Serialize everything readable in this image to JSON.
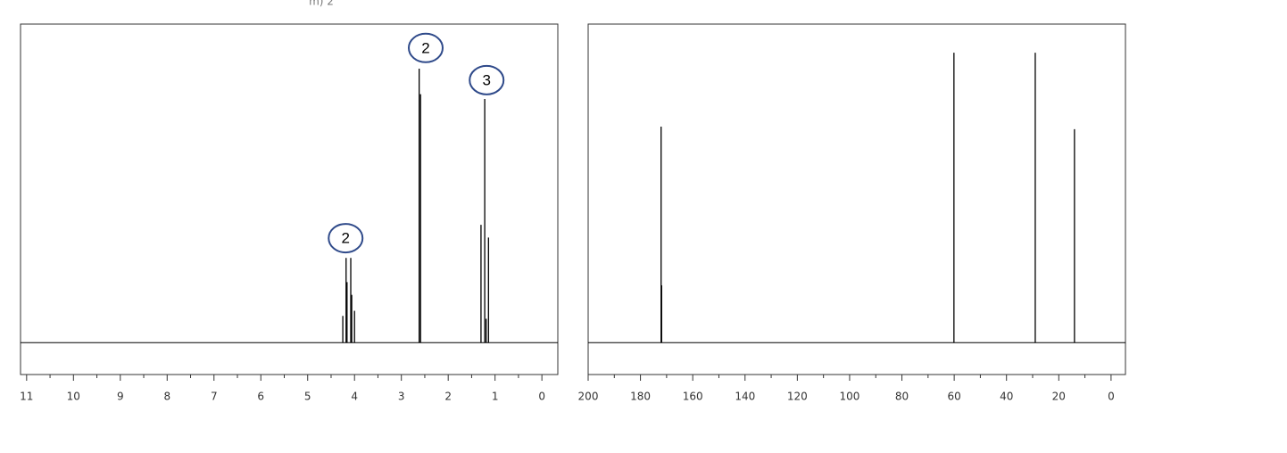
{
  "caption": "m) 2",
  "chart_data": [
    {
      "type": "spectrum",
      "color": "#000000",
      "x": [
        4.25,
        4.18,
        4.16,
        4.08,
        4.06,
        4.0,
        2.62,
        2.59,
        1.3,
        1.22,
        1.19,
        1.14
      ],
      "values": [
        8.4,
        26.6,
        19,
        26.6,
        15,
        10,
        86,
        78,
        37,
        76.5,
        7.5,
        33
      ],
      "xlim": [
        11.13,
        -0.34
      ],
      "ylim": [
        -10,
        100
      ],
      "xticks": [
        11,
        10,
        9,
        8,
        7,
        6,
        5,
        4,
        3,
        2,
        1,
        0
      ],
      "xminorticks": [
        10.5,
        9.5,
        8.5,
        7.5,
        6.5,
        5.5,
        4.5,
        3.5,
        2.5,
        1.5,
        0.5
      ],
      "annotations": [
        {
          "text": "2",
          "x": 4.19,
          "y": 32.8
        },
        {
          "text": "2",
          "x": 2.48,
          "y": 92.5
        },
        {
          "text": "3",
          "x": 1.18,
          "y": 82.4
        }
      ]
    },
    {
      "type": "spectrum",
      "color": "#000000",
      "x": [
        172.1,
        171.9,
        60.1,
        29.0,
        14.0
      ],
      "values": [
        67.8,
        18,
        91,
        91,
        67
      ],
      "xlim": [
        200,
        -5.5
      ],
      "ylim": [
        -10,
        100
      ],
      "xticks": [
        200,
        180,
        160,
        140,
        120,
        100,
        80,
        60,
        40,
        20,
        0
      ],
      "xminorticks": [
        190,
        170,
        150,
        130,
        110,
        90,
        70,
        50,
        30,
        10
      ],
      "annotations": []
    }
  ]
}
